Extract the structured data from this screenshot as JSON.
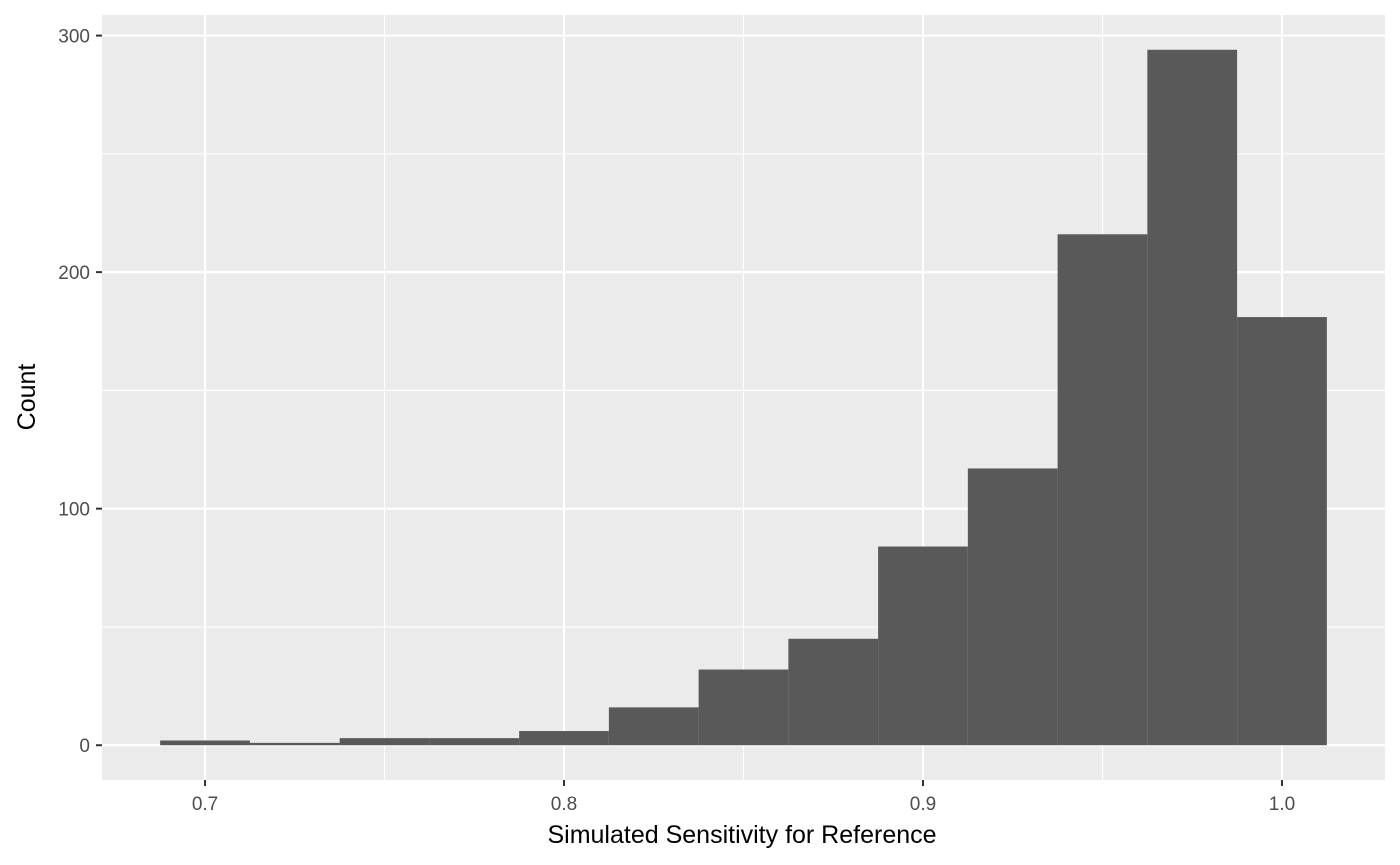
{
  "chart_data": {
    "type": "bar",
    "title": "",
    "xlabel": "Simulated Sensitivity for Reference",
    "ylabel": "Count",
    "bins": [
      {
        "x0": 0.6875,
        "x1": 0.7125,
        "count": 2
      },
      {
        "x0": 0.7125,
        "x1": 0.7375,
        "count": 1
      },
      {
        "x0": 0.7375,
        "x1": 0.7625,
        "count": 3
      },
      {
        "x0": 0.7625,
        "x1": 0.7875,
        "count": 3
      },
      {
        "x0": 0.7875,
        "x1": 0.8125,
        "count": 6
      },
      {
        "x0": 0.8125,
        "x1": 0.8375,
        "count": 16
      },
      {
        "x0": 0.8375,
        "x1": 0.8625,
        "count": 32
      },
      {
        "x0": 0.8625,
        "x1": 0.8875,
        "count": 45
      },
      {
        "x0": 0.8875,
        "x1": 0.9125,
        "count": 84
      },
      {
        "x0": 0.9125,
        "x1": 0.9375,
        "count": 117
      },
      {
        "x0": 0.9375,
        "x1": 0.9625,
        "count": 216
      },
      {
        "x0": 0.9625,
        "x1": 0.9875,
        "count": 294
      },
      {
        "x0": 0.9875,
        "x1": 1.0125,
        "count": 181
      }
    ],
    "xlim": [
      0.6713,
      1.0287
    ],
    "ylim": [
      -14.7,
      308.7
    ],
    "x_ticks": [
      0.7,
      0.8,
      0.9,
      1.0
    ],
    "x_tick_labels": [
      "0.7",
      "0.8",
      "0.9",
      "1.0"
    ],
    "x_minor_ticks": [
      0.75,
      0.85,
      0.95
    ],
    "y_ticks": [
      0,
      100,
      200,
      300
    ],
    "y_tick_labels": [
      "0",
      "100",
      "200",
      "300"
    ],
    "y_minor_ticks": [
      50,
      150,
      250
    ],
    "grid": true,
    "legend": "none",
    "colors": {
      "bar_fill": "#595959",
      "panel_background": "#ebebeb",
      "grid_line": "#ffffff",
      "tick_label": "#4d4d4d",
      "axis_title": "#000000"
    }
  }
}
